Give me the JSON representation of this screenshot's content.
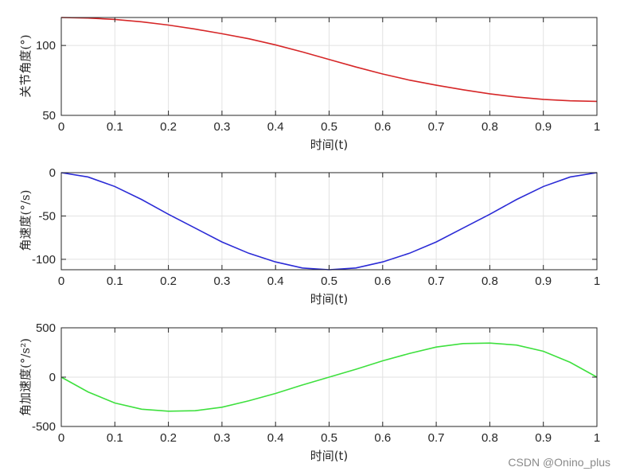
{
  "chart_data": [
    {
      "type": "line",
      "x": [
        0,
        0.05,
        0.1,
        0.15,
        0.2,
        0.25,
        0.3,
        0.35,
        0.4,
        0.45,
        0.5,
        0.55,
        0.6,
        0.65,
        0.7,
        0.75,
        0.8,
        0.85,
        0.9,
        0.95,
        1
      ],
      "series": [
        {
          "color": "#d62728",
          "values": [
            120,
            119.6,
            118.6,
            116.9,
            114.6,
            111.7,
            108.4,
            104.8,
            100.4,
            95.4,
            90,
            84.6,
            79.6,
            75.2,
            71.6,
            68.3,
            65.4,
            63.1,
            61.4,
            60.4,
            60
          ]
        }
      ],
      "xlabel": "时间(t)",
      "ylabel": "关节角度(°)",
      "xlim": [
        0,
        1
      ],
      "ylim": [
        50,
        120
      ],
      "xticks": [
        "0",
        "0.1",
        "0.2",
        "0.3",
        "0.4",
        "0.5",
        "0.6",
        "0.7",
        "0.8",
        "0.9",
        "1"
      ],
      "yticks": [
        "50",
        "100"
      ],
      "ytick_values": [
        50,
        100
      ],
      "grid": true
    },
    {
      "type": "line",
      "x": [
        0,
        0.05,
        0.1,
        0.15,
        0.2,
        0.25,
        0.3,
        0.35,
        0.4,
        0.45,
        0.5,
        0.55,
        0.6,
        0.65,
        0.7,
        0.75,
        0.8,
        0.85,
        0.9,
        0.95,
        1
      ],
      "series": [
        {
          "color": "#2b2bd6",
          "values": [
            0,
            -5,
            -16,
            -31,
            -48,
            -64,
            -80,
            -93,
            -103,
            -110,
            -112,
            -110,
            -103,
            -93,
            -80,
            -64,
            -48,
            -31,
            -16,
            -5,
            0
          ]
        }
      ],
      "xlabel": "时间(t)",
      "ylabel": "角速度(°/s)",
      "xlim": [
        0,
        1
      ],
      "ylim": [
        -112,
        0
      ],
      "xticks": [
        "0",
        "0.1",
        "0.2",
        "0.3",
        "0.4",
        "0.5",
        "0.6",
        "0.7",
        "0.8",
        "0.9",
        "1"
      ],
      "yticks": [
        "-100",
        "-50",
        "0"
      ],
      "ytick_values": [
        -100,
        -50,
        0
      ],
      "grid": true
    },
    {
      "type": "line",
      "x": [
        0,
        0.05,
        0.1,
        0.15,
        0.2,
        0.25,
        0.3,
        0.35,
        0.4,
        0.45,
        0.5,
        0.55,
        0.6,
        0.65,
        0.7,
        0.75,
        0.8,
        0.85,
        0.9,
        0.95,
        1
      ],
      "series": [
        {
          "color": "#3ee03e",
          "values": [
            0,
            -150,
            -262,
            -325,
            -345,
            -340,
            -305,
            -240,
            -165,
            -80,
            0,
            80,
            165,
            240,
            305,
            340,
            345,
            325,
            262,
            150,
            0
          ]
        }
      ],
      "xlabel": "时间(t)",
      "ylabel": "角加速度(°/s²)",
      "xlim": [
        0,
        1
      ],
      "ylim": [
        -500,
        500
      ],
      "xticks": [
        "0",
        "0.1",
        "0.2",
        "0.3",
        "0.4",
        "0.5",
        "0.6",
        "0.7",
        "0.8",
        "0.9",
        "1"
      ],
      "yticks": [
        "-500",
        "0",
        "500"
      ],
      "ytick_values": [
        -500,
        0,
        500
      ],
      "grid": true
    }
  ],
  "watermark": "CSDN @Onino_plus"
}
